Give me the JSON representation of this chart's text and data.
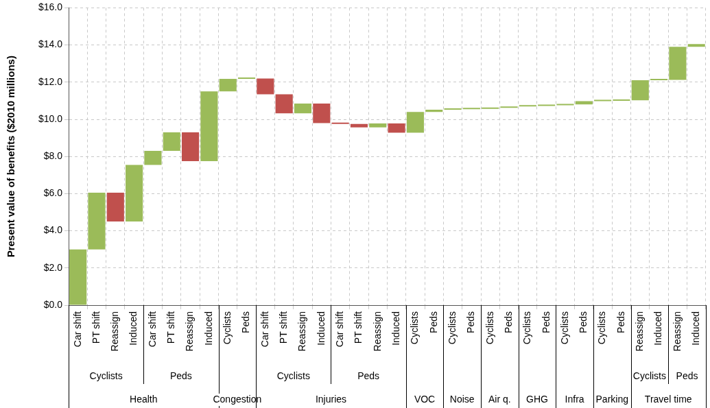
{
  "chart_data": {
    "type": "bar",
    "ylabel": "Present value of benefits ($2010 millions)",
    "categories": [
      "Car shift",
      "PT shift",
      "Reassign",
      "Induced",
      "Car shift",
      "PT shift",
      "Reassign",
      "Induced",
      "Cyclists",
      "Peds",
      "Car shift",
      "PT shift",
      "Reassign",
      "Induced",
      "Car shift",
      "PT shift",
      "Reassign",
      "Induced",
      "Cyclists",
      "Peds",
      "Cyclists",
      "Peds",
      "Cyclists",
      "Peds",
      "Cyclists",
      "Peds",
      "Cyclists",
      "Peds",
      "Cyclists",
      "Peds",
      "Reassign",
      "Induced",
      "Reassign",
      "Induced"
    ],
    "values": [
      3.0,
      3.05,
      -1.55,
      3.05,
      0.75,
      1.0,
      -1.55,
      3.75,
      0.68,
      0.02,
      -0.85,
      -1.03,
      0.53,
      -1.05,
      -0.05,
      -0.18,
      0.21,
      -0.5,
      1.12,
      0.12,
      0.02,
      0.02,
      0.06,
      0.07,
      0.03,
      0.04,
      0.04,
      0.18,
      0.02,
      0.02,
      1.08,
      0.02,
      1.78,
      0.15
    ],
    "base": [
      0,
      3.0,
      6.05,
      4.5,
      7.55,
      8.3,
      9.3,
      7.75,
      11.5,
      12.18,
      12.2,
      11.35,
      10.32,
      10.85,
      9.8,
      9.75,
      9.57,
      9.78,
      9.28,
      10.4,
      10.52,
      10.54,
      10.56,
      10.62,
      10.69,
      10.72,
      10.76,
      10.8,
      10.98,
      11.0,
      11.02,
      12.1,
      12.12,
      13.9
    ],
    "colors": [
      "#9bbb59",
      "#9bbb59",
      "#c0504d",
      "#9bbb59",
      "#9bbb59",
      "#9bbb59",
      "#c0504d",
      "#9bbb59",
      "#9bbb59",
      "#9bbb59",
      "#c0504d",
      "#c0504d",
      "#9bbb59",
      "#c0504d",
      "#c0504d",
      "#c0504d",
      "#9bbb59",
      "#c0504d",
      "#9bbb59",
      "#9bbb59",
      "#9bbb59",
      "#9bbb59",
      "#9bbb59",
      "#9bbb59",
      "#9bbb59",
      "#9bbb59",
      "#9bbb59",
      "#9bbb59",
      "#9bbb59",
      "#9bbb59",
      "#9bbb59",
      "#9bbb59",
      "#9bbb59",
      "#9bbb59"
    ],
    "ylim": [
      0,
      16
    ],
    "yticks": [
      {
        "value": 0,
        "label": "$0.0"
      },
      {
        "value": 2,
        "label": "$2.0"
      },
      {
        "value": 4,
        "label": "$4.0"
      },
      {
        "value": 6,
        "label": "$6.0"
      },
      {
        "value": 8,
        "label": "$8.0"
      },
      {
        "value": 10,
        "label": "$10.0"
      },
      {
        "value": 12,
        "label": "$12.0"
      },
      {
        "value": 14,
        "label": "$14.0"
      },
      {
        "value": 16,
        "label": "$16.0"
      }
    ],
    "grid": true,
    "legend": false,
    "annotations": [
      "Cyclists",
      "Peds",
      "Cyclists",
      "Peds",
      "Cyclists",
      "Peds",
      "Health",
      "Congestion",
      "Injuries",
      "VOC",
      "Noise",
      "Air q.",
      "GHG",
      "Infra",
      "Parking",
      "Travel time"
    ]
  }
}
